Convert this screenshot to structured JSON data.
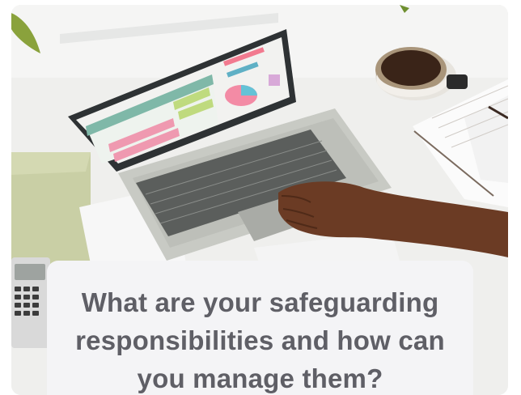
{
  "card": {
    "image_subject": "laptop-spreadsheet-workspace",
    "title": "What are your safeguarding responsibilities and how can you manage them?"
  },
  "colors": {
    "caption_background": "#f4f4f6",
    "caption_text": "#5f5f66",
    "desk": "#f1f1ef"
  }
}
